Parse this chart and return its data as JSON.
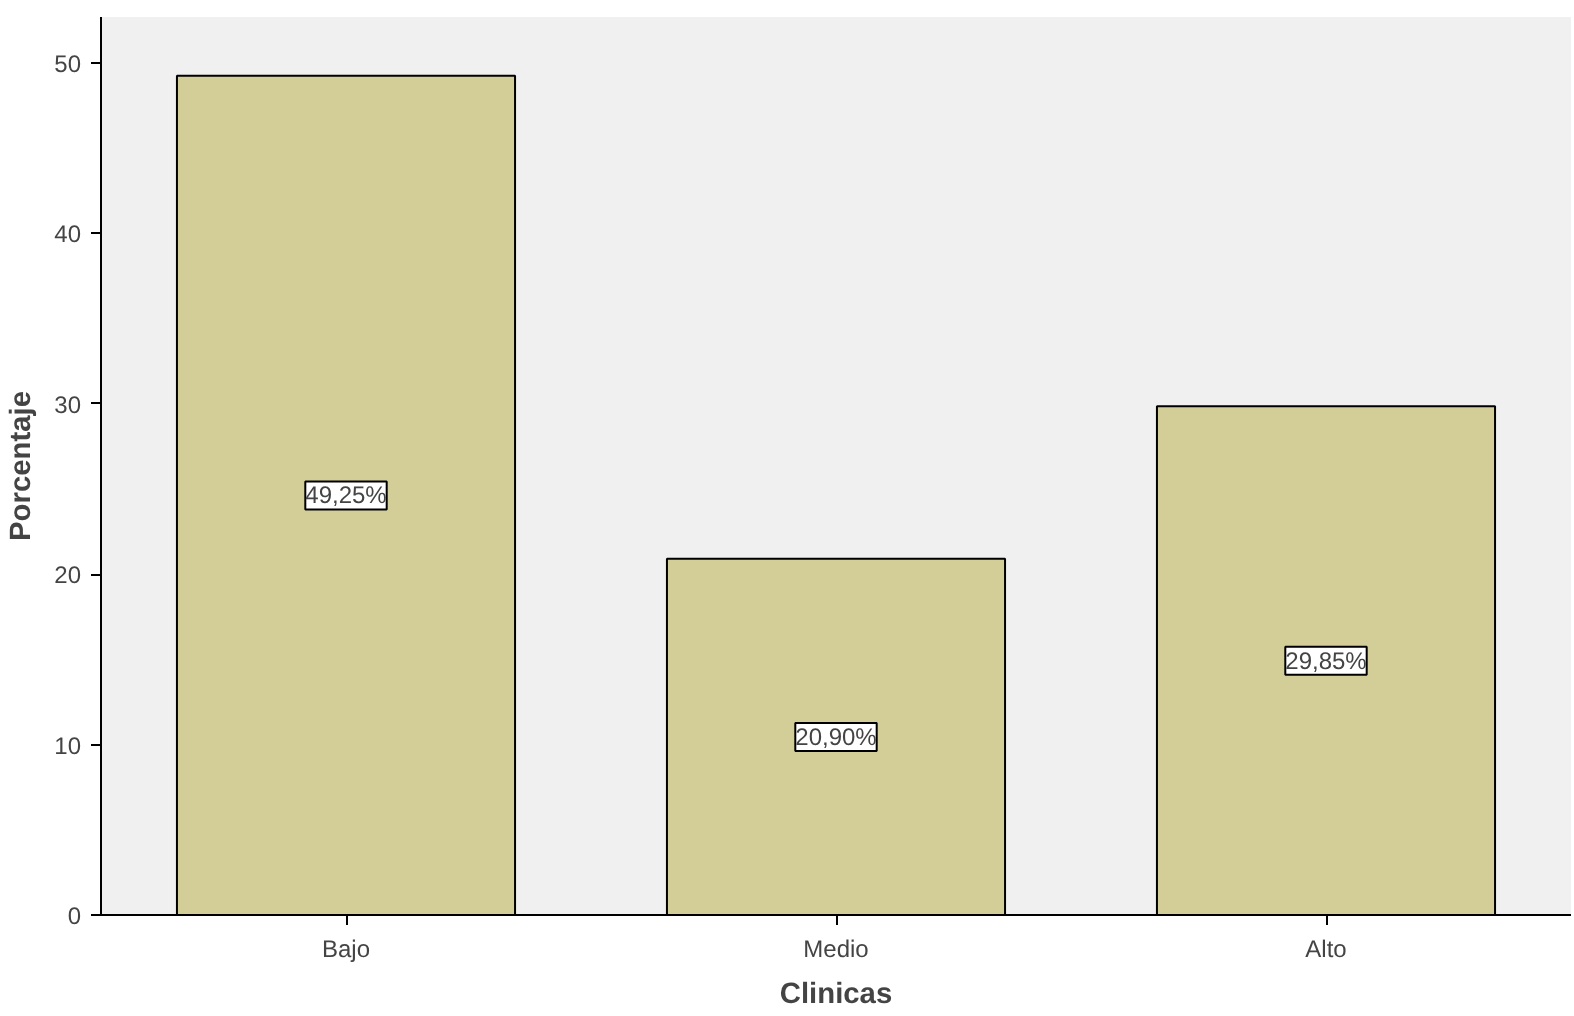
{
  "chart_data": {
    "type": "bar",
    "xlabel": "Clinicas",
    "ylabel": "Porcentaje",
    "categories": [
      "Bajo",
      "Medio",
      "Alto"
    ],
    "values": [
      49.25,
      20.9,
      29.85
    ],
    "color": "#d3ce97",
    "value_labels": [
      "49,25%",
      "20,90%",
      "29,85%"
    ],
    "ylim": [
      0,
      52.7
    ],
    "yticks": [
      0,
      10,
      20,
      30,
      40,
      50
    ],
    "grid": false
  }
}
